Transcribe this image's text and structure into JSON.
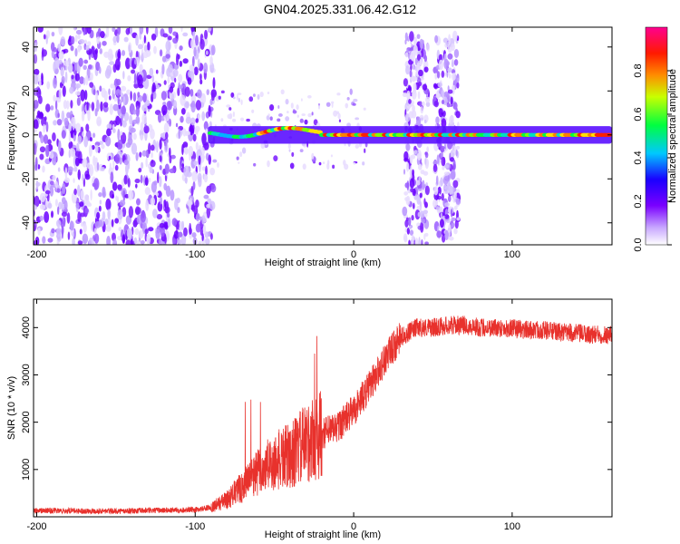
{
  "title": "GN04.2025.331.06.42.G12",
  "chart_data": [
    {
      "type": "heatmap",
      "name": "spectrogram",
      "xlabel": "Height of straight line (km)",
      "ylabel": "Frequency (Hz)",
      "xlim": [
        -202,
        163
      ],
      "ylim": [
        -50,
        49
      ],
      "xticks": [
        -200,
        -100,
        0,
        100
      ],
      "yticks": [
        -40,
        -20,
        0,
        20,
        40
      ],
      "colorbar": {
        "label": "Normalized spectral amplitude",
        "range": [
          0,
          1
        ],
        "ticks": [
          "0.0",
          "0.2",
          "0.4",
          "0.6",
          "0.8"
        ],
        "stops": [
          "#ffffff",
          "#7a00ff",
          "#0000ff",
          "#00ffff",
          "#00ff00",
          "#ffff00",
          "#ff8000",
          "#ff0000",
          "#ff0080"
        ]
      },
      "regions": [
        {
          "name": "noise",
          "x": [
            -202,
            -88
          ],
          "freq": [
            -50,
            49
          ],
          "amplitude": 0.15
        },
        {
          "name": "signal-line",
          "x": [
            -90,
            163
          ],
          "freq": [
            -3,
            3
          ],
          "amplitude": 0.9
        },
        {
          "name": "burst-1",
          "x": [
            32,
            47
          ],
          "freq": [
            -50,
            45
          ],
          "amplitude": 0.1
        },
        {
          "name": "burst-2",
          "x": [
            51,
            66
          ],
          "freq": [
            -48,
            45
          ],
          "amplitude": 0.1
        }
      ]
    },
    {
      "type": "line",
      "name": "snr",
      "xlabel": "Height of straight line (km)",
      "ylabel": "SNR (10 * v/v)",
      "xlim": [
        -202,
        163
      ],
      "ylim": [
        0,
        4600
      ],
      "xticks": [
        -200,
        -100,
        0,
        100
      ],
      "yticks": [
        1000,
        2000,
        3000,
        4000
      ],
      "color": "#e8312c",
      "series": [
        {
          "name": "SNR",
          "x": [
            -202,
            -150,
            -100,
            -90,
            -80,
            -70,
            -60,
            -50,
            -40,
            -30,
            -20,
            -10,
            0,
            10,
            20,
            30,
            40,
            50,
            60,
            70,
            80,
            90,
            100,
            110,
            120,
            130,
            140,
            150,
            163
          ],
          "y": [
            130,
            120,
            150,
            200,
            360,
            650,
            950,
            1150,
            1300,
            1550,
            1750,
            1900,
            2250,
            2750,
            3350,
            3800,
            4000,
            4000,
            4050,
            4050,
            4000,
            4000,
            3980,
            3950,
            3950,
            3900,
            3880,
            3850,
            3850
          ]
        }
      ]
    }
  ]
}
